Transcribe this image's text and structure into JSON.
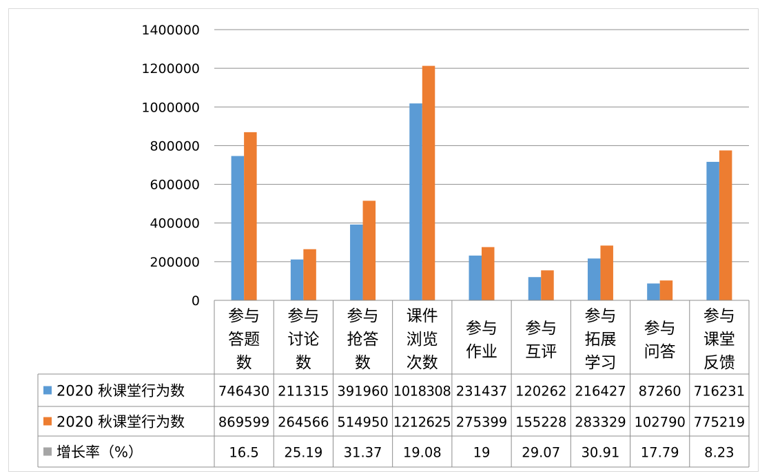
{
  "chart_data": {
    "type": "bar",
    "categories": [
      [
        "参与",
        "答题",
        "数"
      ],
      [
        "参与",
        "讨论",
        "数"
      ],
      [
        "参与",
        "抢答",
        "数"
      ],
      [
        "课件",
        "浏览",
        "次数"
      ],
      [
        "参与",
        "作业"
      ],
      [
        "参与",
        "互评"
      ],
      [
        "参与",
        "拓展",
        "学习"
      ],
      [
        "参与",
        "问答"
      ],
      [
        "参与",
        "课堂",
        "反馈"
      ]
    ],
    "series": [
      {
        "name": "2020 秋课堂行为数",
        "color": "#5B9BD5",
        "values": [
          746430,
          211315,
          391960,
          1018308,
          231437,
          120262,
          216427,
          87260,
          716231
        ],
        "table_labels": [
          "746430",
          "211315",
          "391960",
          "1018308",
          "231437",
          "120262",
          "216427",
          "87260",
          "716231"
        ]
      },
      {
        "name": "2020 秋课堂行为数",
        "color": "#ED7D31",
        "values": [
          869599,
          264566,
          514950,
          1212625,
          275399,
          155228,
          283329,
          102790,
          775219
        ],
        "table_labels": [
          "869599",
          "264566",
          "514950",
          "1212625",
          "275399",
          "155228",
          "283329",
          "102790",
          "775219"
        ]
      },
      {
        "name": "增长率（%）",
        "color": "#A5A5A5",
        "values": [
          16.5,
          25.19,
          31.37,
          19.08,
          19,
          29.07,
          30.91,
          17.79,
          8.23
        ],
        "table_labels": [
          "16.5",
          "25.19",
          "31.37",
          "19.08",
          "19",
          "29.07",
          "30.91",
          "17.79",
          "8.23"
        ]
      }
    ],
    "y_ticks": [
      "0",
      "200000",
      "400000",
      "600000",
      "800000",
      "1000000",
      "1200000",
      "1400000"
    ],
    "ylim": [
      0,
      1400000
    ],
    "grid": true,
    "legend": "data-table"
  }
}
